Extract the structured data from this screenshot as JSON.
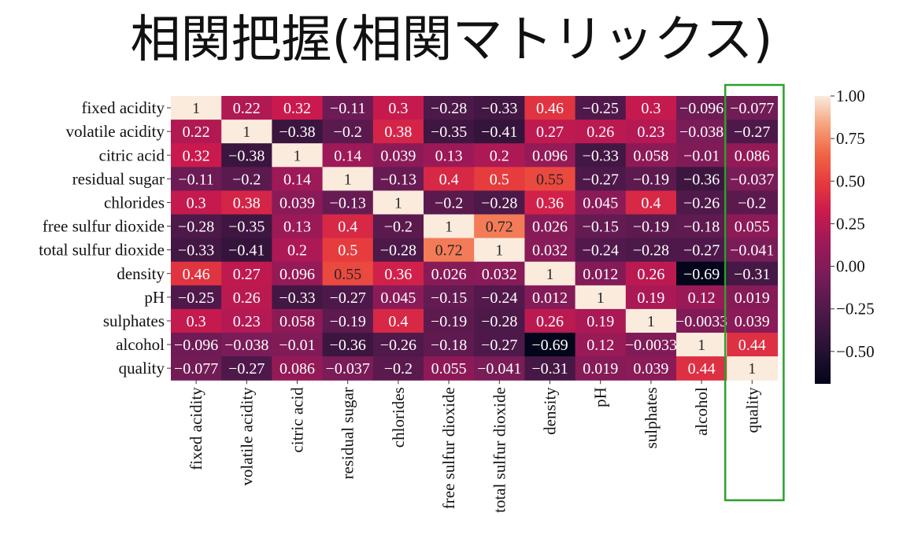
{
  "slide_title": "相関把握(相関マトリックス)",
  "highlight": {
    "column": "quality",
    "color": "#2ca02c"
  },
  "chart_data": {
    "type": "heatmap",
    "title": "",
    "xlabel": "",
    "ylabel": "",
    "labels": [
      "fixed acidity",
      "volatile acidity",
      "citric acid",
      "residual sugar",
      "chlorides",
      "free sulfur dioxide",
      "total sulfur dioxide",
      "density",
      "pH",
      "sulphates",
      "alcohol",
      "quality"
    ],
    "values": [
      [
        1,
        0.22,
        0.32,
        -0.11,
        0.3,
        -0.28,
        -0.33,
        0.46,
        -0.25,
        0.3,
        -0.096,
        -0.077
      ],
      [
        0.22,
        1,
        -0.38,
        -0.2,
        0.38,
        -0.35,
        -0.41,
        0.27,
        0.26,
        0.23,
        -0.038,
        -0.27
      ],
      [
        0.32,
        -0.38,
        1,
        0.14,
        0.039,
        0.13,
        0.2,
        0.096,
        -0.33,
        0.058,
        -0.01,
        0.086
      ],
      [
        -0.11,
        -0.2,
        0.14,
        1,
        -0.13,
        0.4,
        0.5,
        0.55,
        -0.27,
        -0.19,
        -0.36,
        -0.037
      ],
      [
        0.3,
        0.38,
        0.039,
        -0.13,
        1,
        -0.2,
        -0.28,
        0.36,
        0.045,
        0.4,
        -0.26,
        -0.2
      ],
      [
        -0.28,
        -0.35,
        0.13,
        0.4,
        -0.2,
        1,
        0.72,
        0.026,
        -0.15,
        -0.19,
        -0.18,
        0.055
      ],
      [
        -0.33,
        -0.41,
        0.2,
        0.5,
        -0.28,
        0.72,
        1,
        0.032,
        -0.24,
        -0.28,
        -0.27,
        -0.041
      ],
      [
        0.46,
        0.27,
        0.096,
        0.55,
        0.36,
        0.026,
        0.032,
        1,
        0.012,
        0.26,
        -0.69,
        -0.31
      ],
      [
        -0.25,
        0.26,
        -0.33,
        -0.27,
        0.045,
        -0.15,
        -0.24,
        0.012,
        1,
        0.19,
        0.12,
        0.019
      ],
      [
        0.3,
        0.23,
        0.058,
        -0.19,
        0.4,
        -0.19,
        -0.28,
        0.26,
        0.19,
        1,
        -0.0033,
        0.039
      ],
      [
        -0.096,
        -0.038,
        -0.01,
        -0.36,
        -0.26,
        -0.18,
        -0.27,
        -0.69,
        0.12,
        -0.0033,
        1,
        0.44
      ],
      [
        -0.077,
        -0.27,
        0.086,
        -0.037,
        -0.2,
        0.055,
        -0.041,
        -0.31,
        0.019,
        0.039,
        0.44,
        1
      ]
    ],
    "vmin": -0.69,
    "vmax": 1.0,
    "colormap": "rocket",
    "colorbar_ticks": [
      1.0,
      0.75,
      0.5,
      0.25,
      0.0,
      -0.25,
      -0.5
    ],
    "colorbar_tick_labels": [
      "1.00",
      "0.75",
      "0.50",
      "0.25",
      "0.00",
      "−0.25",
      "−0.50"
    ],
    "annotations": true,
    "grid": false
  }
}
